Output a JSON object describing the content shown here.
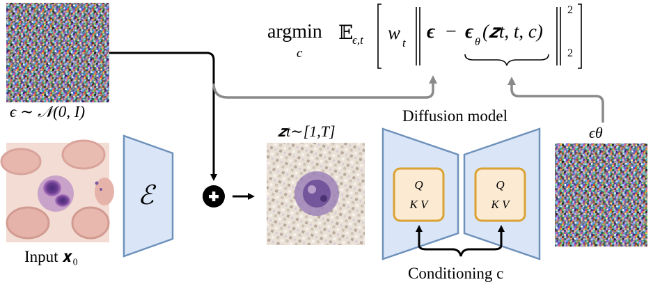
{
  "diagram": {
    "labels": {
      "noise": "ϵ ∼ 𝒩(0, I)",
      "input": "Input 𝒙₀",
      "encoder": "ℰ",
      "latent": "𝒛t∼[1,T]",
      "diffusion_model": "Diffusion model",
      "predicted_noise": "ϵθ",
      "conditioning": "Conditioning c",
      "attention_block_1": {
        "line1": "Q",
        "line2": "K V"
      },
      "attention_block_2": {
        "line1": "Q",
        "line2": "K V"
      }
    },
    "objective": {
      "argmin": "argmin",
      "argmin_sub": "c",
      "expectation": "𝔼",
      "expectation_sub": "ϵ,t",
      "weight": "w",
      "weight_sub": "t",
      "noise": "ϵ",
      "minus": "−",
      "model": "ϵ",
      "model_sub": "θ",
      "model_args": "(𝒛t, t, c)",
      "norm_sub": "2",
      "norm_sup": "2"
    },
    "colors": {
      "box_fill": "#dae6f7",
      "box_stroke": "#6e91bb",
      "attention_fill": "#fcebd2",
      "attention_stroke": "#d9a233",
      "gray_arrow": "#8a8a8a",
      "black_arrow": "#000000"
    }
  }
}
